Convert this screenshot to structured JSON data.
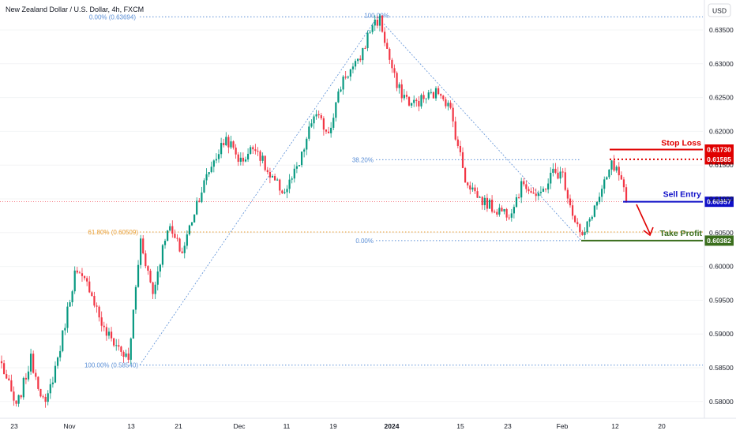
{
  "header": {
    "title": "New Zealand Dollar / U.S. Dollar, 4h, FXCM",
    "currency_button": "USD"
  },
  "chart_data": {
    "type": "candlestick",
    "title": "New Zealand Dollar / U.S. Dollar, 4h, FXCM",
    "currency": "USD",
    "ylim": [
      0.577,
      0.6405
    ],
    "y_ticks": [
      "0.63500",
      "0.63000",
      "0.62500",
      "0.62000",
      "0.61500",
      "0.61000",
      "0.60500",
      "0.60000",
      "0.59500",
      "0.59000",
      "0.58500",
      "0.58000"
    ],
    "x_ticks": [
      "23",
      "Nov",
      "13",
      "21",
      "Dec",
      "11",
      "19",
      "2024",
      "15",
      "23",
      "Feb",
      "12",
      "20"
    ],
    "current_price": 0.60957,
    "anchors": [
      {
        "t": 0,
        "p": 0.5855
      },
      {
        "t": 6,
        "p": 0.579
      },
      {
        "t": 12,
        "p": 0.5862
      },
      {
        "t": 18,
        "p": 0.5792
      },
      {
        "t": 24,
        "p": 0.588
      },
      {
        "t": 30,
        "p": 0.599
      },
      {
        "t": 36,
        "p": 0.597
      },
      {
        "t": 42,
        "p": 0.5905
      },
      {
        "t": 48,
        "p": 0.588
      },
      {
        "t": 52,
        "p": 0.586
      },
      {
        "t": 57,
        "p": 0.604
      },
      {
        "t": 62,
        "p": 0.596
      },
      {
        "t": 68,
        "p": 0.606
      },
      {
        "t": 74,
        "p": 0.602
      },
      {
        "t": 80,
        "p": 0.6095
      },
      {
        "t": 86,
        "p": 0.615
      },
      {
        "t": 92,
        "p": 0.619
      },
      {
        "t": 98,
        "p": 0.6155
      },
      {
        "t": 104,
        "p": 0.618
      },
      {
        "t": 110,
        "p": 0.613
      },
      {
        "t": 116,
        "p": 0.611
      },
      {
        "t": 122,
        "p": 0.615
      },
      {
        "t": 128,
        "p": 0.6225
      },
      {
        "t": 134,
        "p": 0.62
      },
      {
        "t": 140,
        "p": 0.628
      },
      {
        "t": 146,
        "p": 0.63
      },
      {
        "t": 152,
        "p": 0.636
      },
      {
        "t": 155,
        "p": 0.6365
      },
      {
        "t": 158,
        "p": 0.632
      },
      {
        "t": 162,
        "p": 0.6265
      },
      {
        "t": 168,
        "p": 0.624
      },
      {
        "t": 174,
        "p": 0.625
      },
      {
        "t": 180,
        "p": 0.626
      },
      {
        "t": 184,
        "p": 0.623
      },
      {
        "t": 190,
        "p": 0.613
      },
      {
        "t": 196,
        "p": 0.61
      },
      {
        "t": 202,
        "p": 0.6085
      },
      {
        "t": 208,
        "p": 0.608
      },
      {
        "t": 214,
        "p": 0.6125
      },
      {
        "t": 220,
        "p": 0.61
      },
      {
        "t": 226,
        "p": 0.614
      },
      {
        "t": 230,
        "p": 0.6135
      },
      {
        "t": 234,
        "p": 0.608
      },
      {
        "t": 238,
        "p": 0.604
      },
      {
        "t": 242,
        "p": 0.608
      },
      {
        "t": 246,
        "p": 0.611
      },
      {
        "t": 250,
        "p": 0.615
      },
      {
        "t": 253,
        "p": 0.6135
      },
      {
        "t": 256,
        "p": 0.6096
      }
    ],
    "price_line": {
      "price": 0.60957
    },
    "fibonacci": [
      {
        "label": "0.00% (0.63694)",
        "price": 0.63694
      },
      {
        "label": "100.00% (0.58540)",
        "price": 0.5854
      },
      {
        "label": "61.80% (0.60509)",
        "price": 0.60509
      },
      {
        "label": "100.00%",
        "price": 0.63694
      },
      {
        "label": "38.20%",
        "price": 0.6158
      },
      {
        "label": "0.00%",
        "price": 0.60382
      }
    ],
    "annotations": {
      "stop_loss": {
        "label": "Stop Loss",
        "price": 0.6173,
        "price_label": "0.61730",
        "color": "#e00000"
      },
      "secondary_level": {
        "price": 0.61585,
        "price_label": "0.61585",
        "color": "#e00000"
      },
      "sell_entry": {
        "label": "Sell Entry",
        "price": 0.60957,
        "price_label": "0.60957",
        "color": "#1010c8"
      },
      "take_profit": {
        "label": "Take Profit",
        "price": 0.60382,
        "price_label": "0.60382",
        "color": "#3a6e1c"
      }
    },
    "colors": {
      "up": "#089981",
      "down": "#f23645",
      "fib_blue": "#5b8fd6",
      "fib_orange": "#e89a2a"
    }
  }
}
